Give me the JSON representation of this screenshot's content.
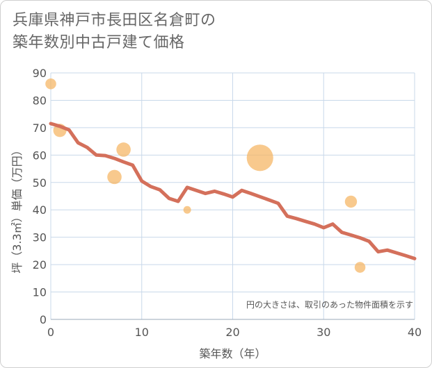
{
  "title_lines": [
    "兵庫県神戸市長田区名倉町の",
    "築年数別中古戸建て価格"
  ],
  "chart_data": {
    "type": "line+scatter",
    "xlabel": "築年数（年）",
    "ylabel": "坪（3.3㎡）単価（万円）",
    "xlim": [
      0,
      40
    ],
    "ylim": [
      0,
      90
    ],
    "xticks": [
      0,
      10,
      20,
      30,
      40
    ],
    "yticks": [
      0,
      10,
      20,
      30,
      40,
      50,
      60,
      70,
      80,
      90
    ],
    "grid": true,
    "annotation": "円の大きさは、取引のあった物件面積を示す",
    "colors": {
      "line": "#d4705b",
      "bubble": "#f5b461",
      "axis_text": "#555555",
      "grid": "#c8d8ea"
    },
    "line": {
      "x": [
        0,
        1,
        2,
        3,
        4,
        5,
        6,
        7,
        8,
        9,
        10,
        11,
        12,
        13,
        14,
        15,
        16,
        17,
        18,
        19,
        20,
        21,
        22,
        23,
        24,
        25,
        26,
        27,
        28,
        29,
        30,
        31,
        32,
        33,
        34,
        35,
        36,
        37,
        38,
        39,
        40
      ],
      "y": [
        71.5,
        70.5,
        69.2,
        64.5,
        62.8,
        60,
        59.8,
        58.8,
        57.5,
        56.3,
        50.5,
        48.5,
        47.3,
        44.2,
        43.1,
        48.2,
        47.1,
        46,
        46.8,
        45.8,
        44.7,
        47.1,
        46,
        44.8,
        43.6,
        42.4,
        37.7,
        36.8,
        35.8,
        34.8,
        33.5,
        34.8,
        31.8,
        30.8,
        29.8,
        28.5,
        24.7,
        25.3,
        24.3,
        23.3,
        22.2
      ]
    },
    "points": [
      {
        "x": 0,
        "y": 86,
        "size": 2
      },
      {
        "x": 1,
        "y": 69,
        "size": 3
      },
      {
        "x": 7,
        "y": 52,
        "size": 3.5
      },
      {
        "x": 8,
        "y": 62,
        "size": 3.5
      },
      {
        "x": 15,
        "y": 40,
        "size": 1
      },
      {
        "x": 23,
        "y": 59,
        "size": 12
      },
      {
        "x": 33,
        "y": 43,
        "size": 2.5
      },
      {
        "x": 34,
        "y": 19,
        "size": 2
      }
    ]
  }
}
